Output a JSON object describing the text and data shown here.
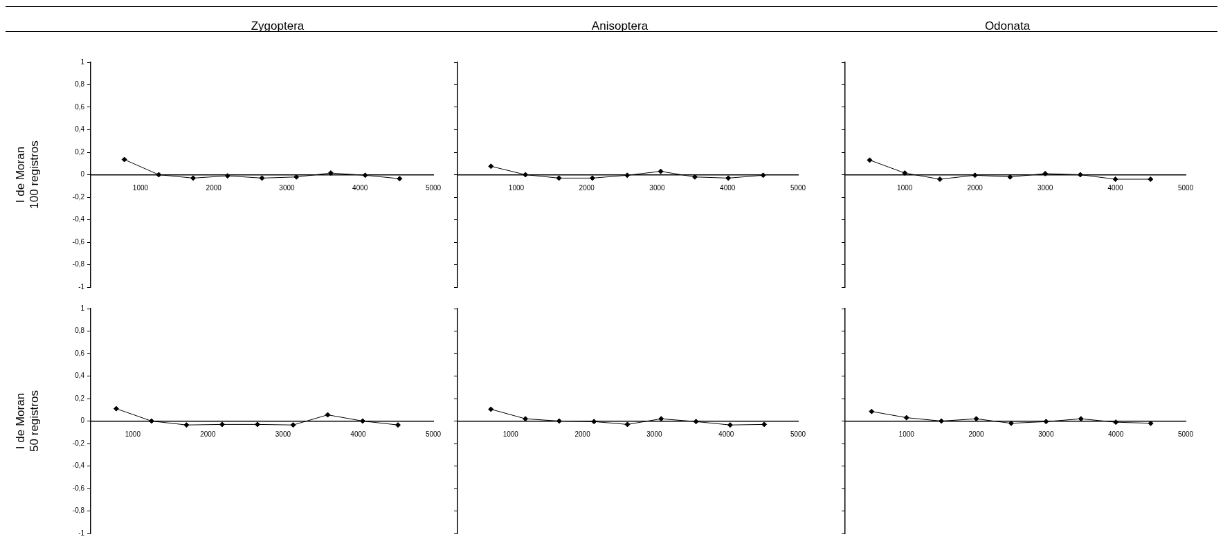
{
  "chart_data": [
    {
      "type": "line",
      "title": "Zygoptera",
      "ylabel": "I de Moran\n100 registros",
      "color": "#000000",
      "marker": "diamond",
      "x": [
        780,
        1250,
        1720,
        2190,
        2660,
        3130,
        3600,
        4070,
        4540
      ],
      "values": [
        0.135,
        0,
        -0.03,
        -0.01,
        -0.03,
        -0.02,
        0.015,
        -0.005,
        -0.035
      ],
      "xlim": [
        320,
        5000
      ],
      "xticks": [
        1000,
        2000,
        3000,
        4000,
        5000
      ],
      "ylim": [
        -1,
        1
      ],
      "yticks": [
        {
          "value": -1,
          "label": "-1"
        },
        {
          "value": -0.8,
          "label": "-0,8"
        },
        {
          "value": -0.6,
          "label": "-0,6"
        },
        {
          "value": -0.4,
          "label": "-0,4"
        },
        {
          "value": -0.2,
          "label": "-0,2"
        },
        {
          "value": 0,
          "label": "0"
        },
        {
          "value": 0.2,
          "label": "0,2"
        },
        {
          "value": 0.4,
          "label": "0,4"
        },
        {
          "value": 0.6,
          "label": "0,6"
        },
        {
          "value": 0.8,
          "label": "0,8"
        },
        {
          "value": 1,
          "label": "1"
        }
      ]
    },
    {
      "type": "line",
      "title": "Anisoptera",
      "color": "#000000",
      "marker": "diamond",
      "tick_labels": "x",
      "x": [
        640,
        1130,
        1605,
        2080,
        2575,
        3050,
        3535,
        4010,
        4505
      ],
      "values": [
        0.075,
        0,
        -0.03,
        -0.03,
        -0.005,
        0.03,
        -0.02,
        -0.03,
        -0.005
      ],
      "xlim": [
        165,
        5000
      ],
      "xticks": [
        1000,
        2000,
        3000,
        4000,
        5000
      ],
      "ylim": [
        -1,
        1
      ],
      "yticks": [
        {
          "value": -1,
          "label": null
        },
        {
          "value": -0.8,
          "label": null
        },
        {
          "value": -0.6,
          "label": null
        },
        {
          "value": -0.4,
          "label": null
        },
        {
          "value": -0.2,
          "label": null
        },
        {
          "value": 0,
          "label": null
        },
        {
          "value": 0.2,
          "label": null
        },
        {
          "value": 0.4,
          "label": null
        },
        {
          "value": 0.6,
          "label": null
        },
        {
          "value": 0.8,
          "label": null
        },
        {
          "value": 1,
          "label": null
        }
      ]
    },
    {
      "type": "line",
      "title": "Odonata",
      "color": "#000000",
      "marker": "diamond",
      "tick_labels": "x",
      "x": [
        500,
        1000,
        1500,
        2000,
        2500,
        3000,
        3500,
        4000,
        4500
      ],
      "values": [
        0.13,
        0.015,
        -0.04,
        -0.005,
        -0.02,
        0.01,
        0,
        -0.04,
        -0.04
      ],
      "xlim": [
        150,
        5000
      ],
      "xticks": [
        1000,
        2000,
        3000,
        4000,
        5000
      ],
      "ylim": [
        -1,
        1
      ],
      "yticks": [
        {
          "value": -1,
          "label": null
        },
        {
          "value": -0.8,
          "label": null
        },
        {
          "value": -0.6,
          "label": null
        },
        {
          "value": -0.4,
          "label": null
        },
        {
          "value": -0.2,
          "label": null
        },
        {
          "value": 0,
          "label": null
        },
        {
          "value": 0.2,
          "label": null
        },
        {
          "value": 0.4,
          "label": null
        },
        {
          "value": 0.6,
          "label": null
        },
        {
          "value": 0.8,
          "label": null
        },
        {
          "value": 1,
          "label": null
        }
      ]
    },
    {
      "type": "line",
      "ylabel": "I de Moran\n50 registros",
      "color": "#000000",
      "marker": "diamond",
      "x": [
        780,
        1250,
        1715,
        2190,
        2660,
        3135,
        3595,
        4060,
        4530
      ],
      "values": [
        0.11,
        0,
        -0.035,
        -0.03,
        -0.03,
        -0.035,
        0.055,
        0,
        -0.035
      ],
      "xlim": [
        440,
        5000
      ],
      "xticks": [
        1000,
        2000,
        3000,
        4000,
        5000
      ],
      "ylim": [
        -1,
        1
      ],
      "yticks": [
        {
          "value": -1,
          "label": "-1"
        },
        {
          "value": -0.8,
          "label": "-0,8"
        },
        {
          "value": -0.6,
          "label": "-0,6"
        },
        {
          "value": -0.4,
          "label": "-0,4"
        },
        {
          "value": -0.2,
          "label": "-0,2"
        },
        {
          "value": 0,
          "label": "0"
        },
        {
          "value": 0.2,
          "label": "0,2"
        },
        {
          "value": 0.4,
          "label": "0,4"
        },
        {
          "value": 0.6,
          "label": "0,6"
        },
        {
          "value": 0.8,
          "label": "0,8"
        },
        {
          "value": 1,
          "label": "1"
        }
      ]
    },
    {
      "type": "line",
      "color": "#000000",
      "marker": "diamond",
      "tick_labels": "x",
      "x": [
        725,
        1205,
        1675,
        2160,
        2625,
        3095,
        3580,
        4055,
        4530
      ],
      "values": [
        0.105,
        0.02,
        0,
        -0.005,
        -0.03,
        0.02,
        -0.005,
        -0.035,
        -0.03
      ],
      "xlim": [
        260,
        5000
      ],
      "xticks": [
        1000,
        2000,
        3000,
        4000,
        5000
      ],
      "ylim": [
        -1,
        1
      ],
      "yticks": [
        {
          "value": -1,
          "label": null
        },
        {
          "value": -0.8,
          "label": null
        },
        {
          "value": -0.6,
          "label": null
        },
        {
          "value": -0.4,
          "label": null
        },
        {
          "value": -0.2,
          "label": null
        },
        {
          "value": 0,
          "label": null
        },
        {
          "value": 0.2,
          "label": null
        },
        {
          "value": 0.4,
          "label": null
        },
        {
          "value": 0.6,
          "label": null
        },
        {
          "value": 0.8,
          "label": null
        },
        {
          "value": 1,
          "label": null
        }
      ]
    },
    {
      "type": "line",
      "color": "#000000",
      "marker": "diamond",
      "tick_labels": "x",
      "x": [
        500,
        1000,
        1500,
        2000,
        2500,
        3000,
        3500,
        4000,
        4500
      ],
      "values": [
        0.085,
        0.03,
        0,
        0.02,
        -0.02,
        -0.005,
        0.02,
        -0.01,
        -0.02
      ],
      "xlim": [
        120,
        5000
      ],
      "xticks": [
        1000,
        2000,
        3000,
        4000,
        5000
      ],
      "ylim": [
        -1,
        1
      ],
      "yticks": [
        {
          "value": -1,
          "label": null
        },
        {
          "value": -0.8,
          "label": null
        },
        {
          "value": -0.6,
          "label": null
        },
        {
          "value": -0.4,
          "label": null
        },
        {
          "value": -0.2,
          "label": null
        },
        {
          "value": 0,
          "label": null
        },
        {
          "value": 0.2,
          "label": null
        },
        {
          "value": 0.4,
          "label": null
        },
        {
          "value": 0.6,
          "label": null
        },
        {
          "value": 0.8,
          "label": null
        },
        {
          "value": 1,
          "label": null
        }
      ]
    }
  ]
}
